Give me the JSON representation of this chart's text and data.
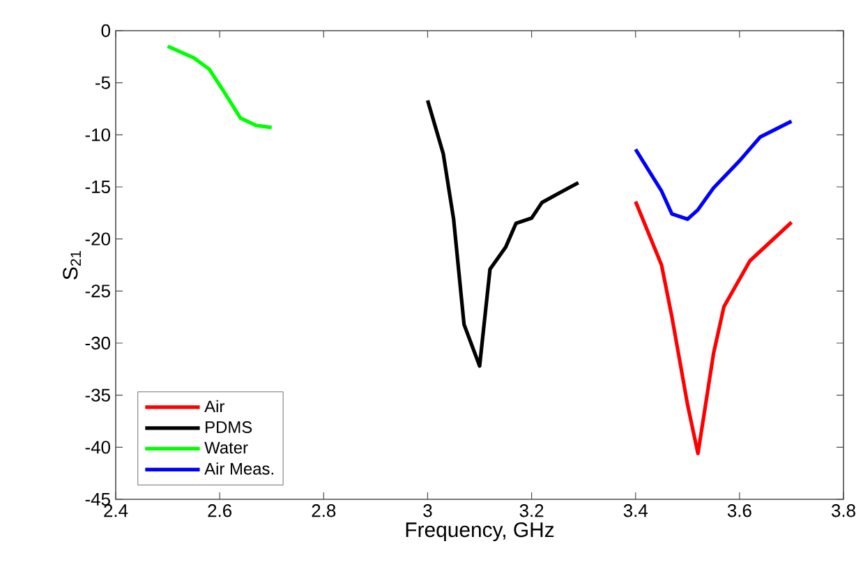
{
  "chart_data": {
    "type": "line",
    "xlabel": "Frequency, GHz",
    "ylabel": "S$_{21}$",
    "xlim": [
      2.4,
      3.8
    ],
    "xticks": [
      2.4,
      2.6,
      2.8,
      3,
      3.2,
      3.4,
      3.6,
      3.8
    ],
    "ylim": [
      -45,
      0
    ],
    "yticks": [
      -45,
      -40,
      -35,
      -30,
      -25,
      -20,
      -15,
      -10,
      -5,
      0
    ],
    "legend": "bottom left",
    "grid": false,
    "marker": "none",
    "line_style": "solid",
    "series": [
      {
        "name": "Air",
        "color": "#ff0000",
        "x": [
          3.4,
          3.45,
          3.47,
          3.5,
          3.52,
          3.55,
          3.57,
          3.62,
          3.7
        ],
        "values": [
          -16.4,
          -22.5,
          -27.5,
          -35.9,
          -40.6,
          -31.0,
          -26.5,
          -22.1,
          -18.4
        ]
      },
      {
        "name": "PDMS",
        "color": "#000000",
        "x": [
          3.0,
          3.03,
          3.05,
          3.07,
          3.1,
          3.12,
          3.15,
          3.17,
          3.2,
          3.22,
          3.26,
          3.29
        ],
        "values": [
          -6.7,
          -11.8,
          -18.1,
          -28.2,
          -32.2,
          -22.9,
          -20.8,
          -18.5,
          -18.0,
          -16.5,
          -15.4,
          -14.6
        ]
      },
      {
        "name": "Water",
        "color": "#00ff00",
        "x": [
          2.5,
          2.55,
          2.58,
          2.61,
          2.64,
          2.67,
          2.7
        ],
        "values": [
          -1.5,
          -2.6,
          -3.7,
          -6.0,
          -8.4,
          -9.1,
          -9.3
        ]
      },
      {
        "name": "Air Meas.",
        "color": "#0000ff",
        "x": [
          3.4,
          3.45,
          3.47,
          3.5,
          3.52,
          3.55,
          3.6,
          3.64,
          3.7
        ],
        "values": [
          -11.4,
          -15.4,
          -17.6,
          -18.1,
          -17.2,
          -15.1,
          -12.5,
          -10.2,
          -8.7
        ]
      }
    ]
  }
}
